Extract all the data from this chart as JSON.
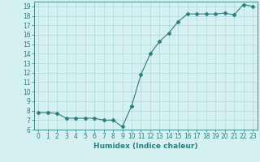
{
  "x": [
    0,
    1,
    2,
    3,
    4,
    5,
    6,
    7,
    8,
    9,
    10,
    11,
    12,
    13,
    14,
    15,
    16,
    17,
    18,
    19,
    20,
    21,
    22,
    23
  ],
  "y": [
    7.8,
    7.8,
    7.7,
    7.2,
    7.2,
    7.2,
    7.2,
    7.0,
    7.0,
    6.3,
    8.5,
    11.8,
    14.0,
    15.3,
    16.2,
    17.4,
    18.2,
    18.2,
    18.2,
    18.2,
    18.3,
    18.1,
    19.2,
    19.0
  ],
  "xlim": [
    -0.5,
    23.5
  ],
  "ylim": [
    6,
    19.5
  ],
  "yticks": [
    6,
    7,
    8,
    9,
    10,
    11,
    12,
    13,
    14,
    15,
    16,
    17,
    18,
    19
  ],
  "xticks": [
    0,
    1,
    2,
    3,
    4,
    5,
    6,
    7,
    8,
    9,
    10,
    11,
    12,
    13,
    14,
    15,
    16,
    17,
    18,
    19,
    20,
    21,
    22,
    23
  ],
  "xlabel": "Humidex (Indice chaleur)",
  "line_color": "#2e7d7d",
  "marker": "D",
  "marker_size": 2.5,
  "bg_color": "#d4f0f0",
  "grid_color": "#b0d8d8",
  "tick_color": "#2e7d7d",
  "label_color": "#2e7d7d",
  "font_size_ticks": 5.5,
  "font_size_xlabel": 6.5
}
